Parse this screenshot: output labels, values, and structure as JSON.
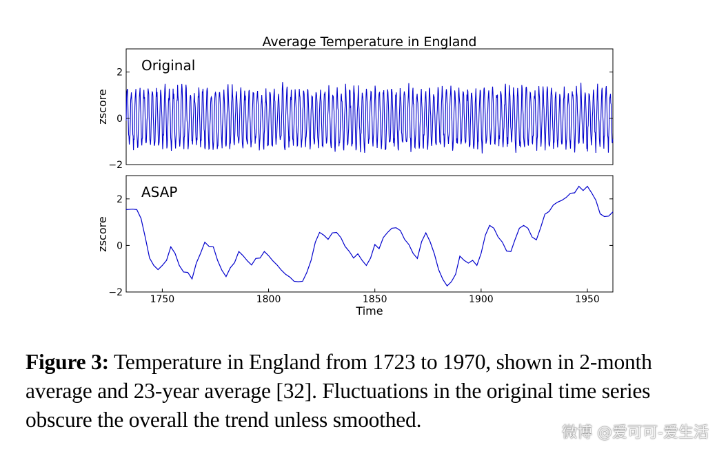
{
  "figure": {
    "title": "Average Temperature in England"
  },
  "chart_data": [
    {
      "type": "line",
      "panel_label": "Original",
      "ylabel": "zscore",
      "xlabel": "",
      "xlim": [
        1733,
        1962
      ],
      "ylim": [
        -2,
        3
      ],
      "yticks": [
        -2,
        0,
        2
      ],
      "ytick_labels": [
        "−2",
        "0",
        "2"
      ],
      "color": "#0000cc",
      "note_samples": "oscillating series, amplitude ~1.3 with peaks near 2.0 and troughs near -1.9"
    },
    {
      "type": "line",
      "panel_label": "ASAP",
      "ylabel": "zscore",
      "xlabel": "Time",
      "xlim": [
        1733,
        1962
      ],
      "ylim": [
        -2,
        3
      ],
      "yticks": [
        -2,
        0,
        2
      ],
      "ytick_labels": [
        "−2",
        "0",
        "2"
      ],
      "xticks": [
        1750,
        1800,
        1850,
        1900,
        1950
      ],
      "xtick_labels": [
        "1750",
        "1800",
        "1850",
        "1900",
        "1950"
      ],
      "color": "#0000cc",
      "x": [
        1733,
        1736,
        1738,
        1740,
        1742,
        1744,
        1746,
        1748,
        1750,
        1752,
        1754,
        1756,
        1758,
        1760,
        1762,
        1764,
        1766,
        1768,
        1770,
        1772,
        1774,
        1776,
        1778,
        1780,
        1782,
        1784,
        1786,
        1788,
        1790,
        1792,
        1794,
        1796,
        1798,
        1800,
        1802,
        1804,
        1806,
        1808,
        1810,
        1812,
        1814,
        1816,
        1818,
        1820,
        1822,
        1824,
        1826,
        1828,
        1830,
        1832,
        1834,
        1836,
        1838,
        1840,
        1842,
        1844,
        1846,
        1848,
        1850,
        1852,
        1854,
        1856,
        1858,
        1860,
        1862,
        1864,
        1866,
        1868,
        1870,
        1872,
        1874,
        1876,
        1878,
        1880,
        1882,
        1884,
        1886,
        1888,
        1890,
        1892,
        1894,
        1896,
        1898,
        1900,
        1902,
        1904,
        1906,
        1908,
        1910,
        1912,
        1914,
        1916,
        1918,
        1920,
        1922,
        1924,
        1926,
        1928,
        1930,
        1932,
        1934,
        1936,
        1938,
        1940,
        1942,
        1944,
        1946,
        1948,
        1950,
        1952,
        1954,
        1956,
        1958,
        1960,
        1962
      ],
      "y": [
        1.5,
        1.6,
        1.5,
        1.2,
        0.3,
        -0.5,
        -0.9,
        -1.0,
        -0.9,
        -0.6,
        -0.1,
        -0.3,
        -0.9,
        -1.1,
        -1.2,
        -1.4,
        -0.8,
        -0.3,
        0.1,
        0.0,
        -0.1,
        -0.6,
        -1.1,
        -1.3,
        -1.0,
        -0.7,
        -0.3,
        -0.4,
        -0.7,
        -0.8,
        -0.6,
        -0.5,
        -0.3,
        -0.4,
        -0.7,
        -0.8,
        -1.1,
        -1.2,
        -1.4,
        -1.5,
        -1.6,
        -1.5,
        -1.2,
        -0.6,
        0.1,
        0.6,
        0.4,
        0.3,
        0.5,
        0.6,
        0.3,
        0.0,
        -0.3,
        -0.5,
        -0.4,
        -0.6,
        -0.9,
        -0.5,
        0.0,
        -0.1,
        0.3,
        0.6,
        0.7,
        0.8,
        0.6,
        0.3,
        0.0,
        -0.3,
        -0.6,
        0.2,
        0.5,
        0.2,
        -0.4,
        -1.0,
        -1.5,
        -1.7,
        -1.6,
        -1.2,
        -0.5,
        -0.6,
        -0.8,
        -0.6,
        -0.9,
        -0.3,
        0.4,
        0.9,
        0.7,
        0.4,
        0.1,
        -0.2,
        -0.3,
        0.3,
        0.7,
        0.9,
        0.7,
        0.4,
        0.2,
        0.8,
        1.3,
        1.5,
        1.7,
        1.9,
        1.9,
        2.1,
        2.2,
        2.3,
        2.5,
        2.4,
        2.5,
        2.3,
        1.9,
        1.4,
        1.2,
        1.3,
        1.4
      ]
    }
  ],
  "caption": {
    "label": "Figure 3:",
    "text": " Temperature in England from 1723 to 1970, shown in 2-month average and 23-year average [32]. Fluctuations in the original time series obscure the overall the trend unless smoothed."
  },
  "watermark": "微博 @爱可可-爱生活"
}
